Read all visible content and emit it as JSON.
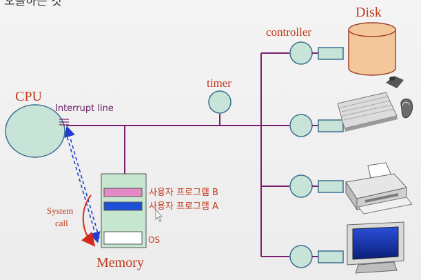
{
  "header": {
    "cropped_title": "오늘하는 것"
  },
  "labels": {
    "disk": "Disk",
    "controller": "controller",
    "cpu": "CPU",
    "interrupt_line": "Interrupt line",
    "timer": "timer",
    "system": "System",
    "call": "call",
    "memory": "Memory",
    "program_b": "사용자 프로그램 B",
    "program_a": "사용자 프로그램 A",
    "os": "OS"
  },
  "colors": {
    "bus": "#7a1f6e",
    "node_fill": "#c8e4d8",
    "node_stroke": "#3a6f8f",
    "label_red": "#c0381c",
    "label_purple": "#6a1a62",
    "arrow_blue": "#1f3fd0",
    "arrow_red": "#d42a1a",
    "program_b_fill": "#e58ac4",
    "program_a_fill": "#1f4fd6",
    "disk_fill": "#f3c79a",
    "disk_stroke": "#a0402a",
    "memory_fill": "#c6e6cf"
  },
  "icons": {
    "disk": "disk-cylinder-icon",
    "keyboard": "keyboard-mouse-icon",
    "printer": "printer-icon",
    "monitor": "monitor-icon"
  }
}
